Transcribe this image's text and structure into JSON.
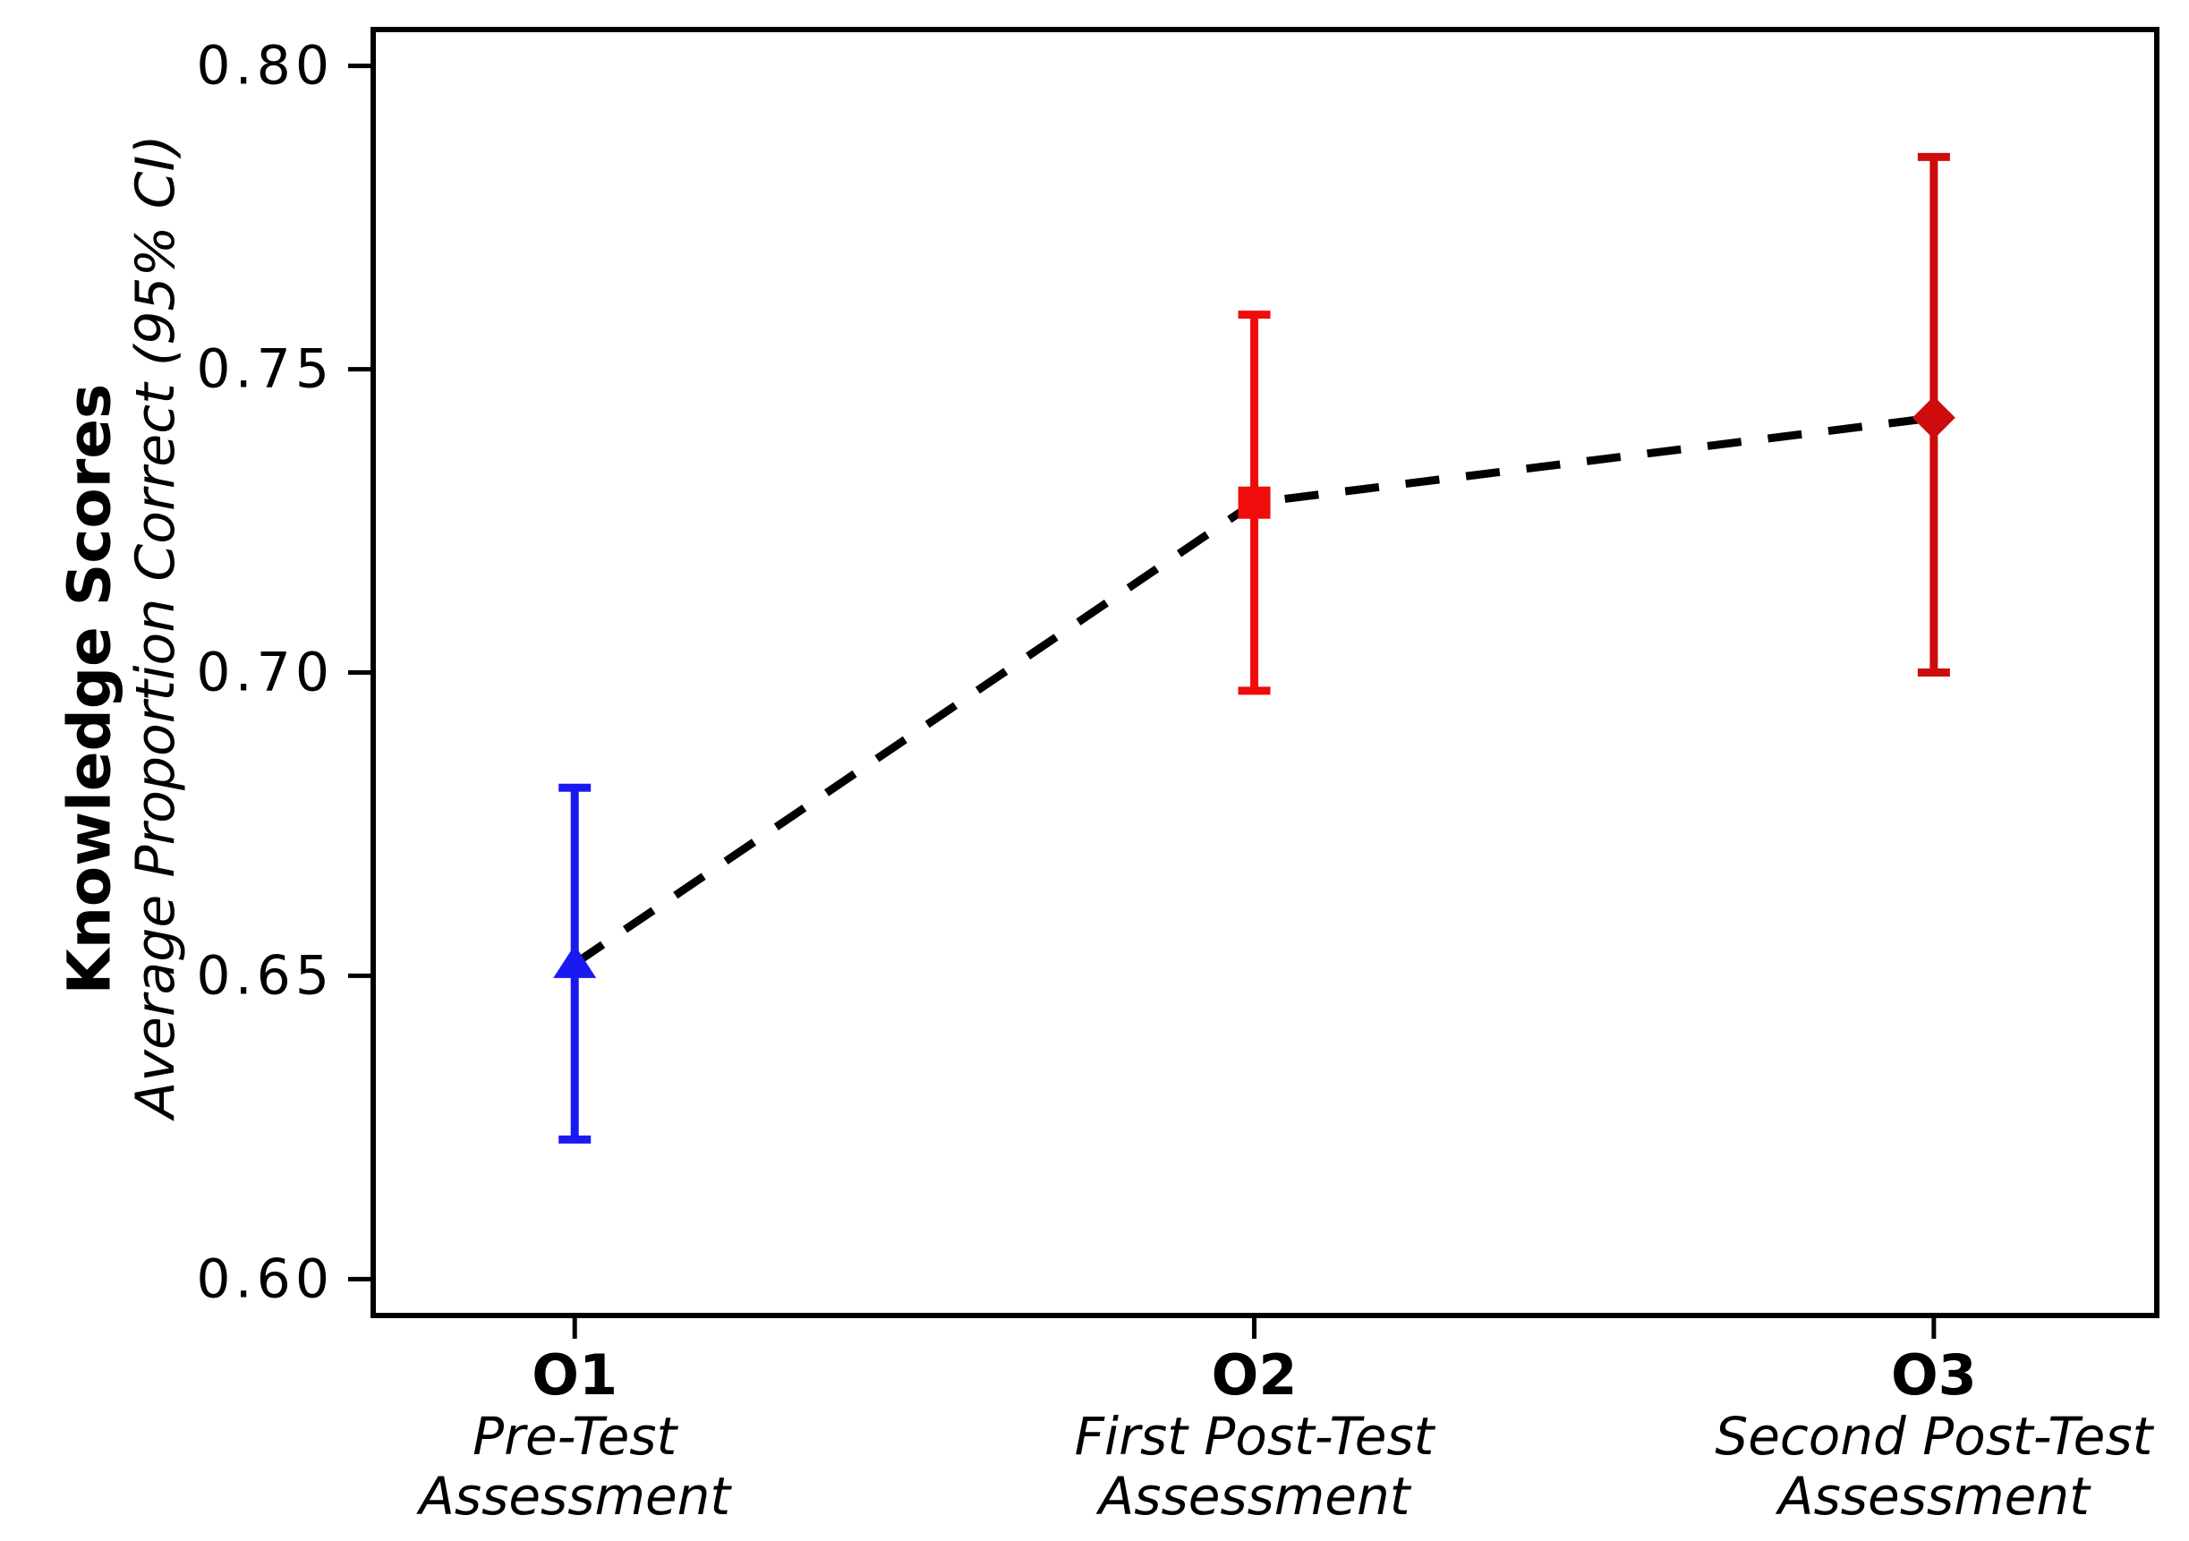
{
  "chart_data": {
    "type": "line",
    "title": "",
    "ylabel_primary": "Knowledge Scores",
    "ylabel_secondary": "Average Proportion Correct (95% CI)",
    "grid": false,
    "legend": "none",
    "ylim": [
      0.594,
      0.806
    ],
    "yticks": [
      {
        "value": 0.6,
        "label": "0.60"
      },
      {
        "value": 0.65,
        "label": "0.65"
      },
      {
        "value": 0.7,
        "label": "0.70"
      },
      {
        "value": 0.75,
        "label": "0.75"
      },
      {
        "value": 0.8,
        "label": "0.80"
      }
    ],
    "x_axis": {
      "categories": [
        {
          "code": "O1",
          "line1": "Pre-Test",
          "line2": "Assessment"
        },
        {
          "code": "O2",
          "line1": "First Post-Test",
          "line2": "Assessment"
        },
        {
          "code": "O3",
          "line1": "Second Post-Test",
          "line2": "Assessment"
        }
      ],
      "positions": [
        0.113,
        0.494,
        0.875
      ]
    },
    "series": [
      {
        "name": "Average proportion correct (95% CI)",
        "line_style": "dashed",
        "line_color": "#000000",
        "points": [
          {
            "category": "O1",
            "value": 0.652,
            "ci_low": 0.623,
            "ci_high": 0.681,
            "marker": "triangle",
            "color": "#1a1af0"
          },
          {
            "category": "O2",
            "value": 0.728,
            "ci_low": 0.697,
            "ci_high": 0.759,
            "marker": "square",
            "color": "#f10c0c"
          },
          {
            "category": "O3",
            "value": 0.742,
            "ci_low": 0.7,
            "ci_high": 0.785,
            "marker": "diamond",
            "color": "#cd0d0d"
          }
        ]
      }
    ]
  },
  "colors": {
    "axis": "#000000",
    "background": "#ffffff",
    "o1_blue": "#1a1af0",
    "o2_red": "#f10c0c",
    "o3_dark_red": "#cd0d0d"
  }
}
